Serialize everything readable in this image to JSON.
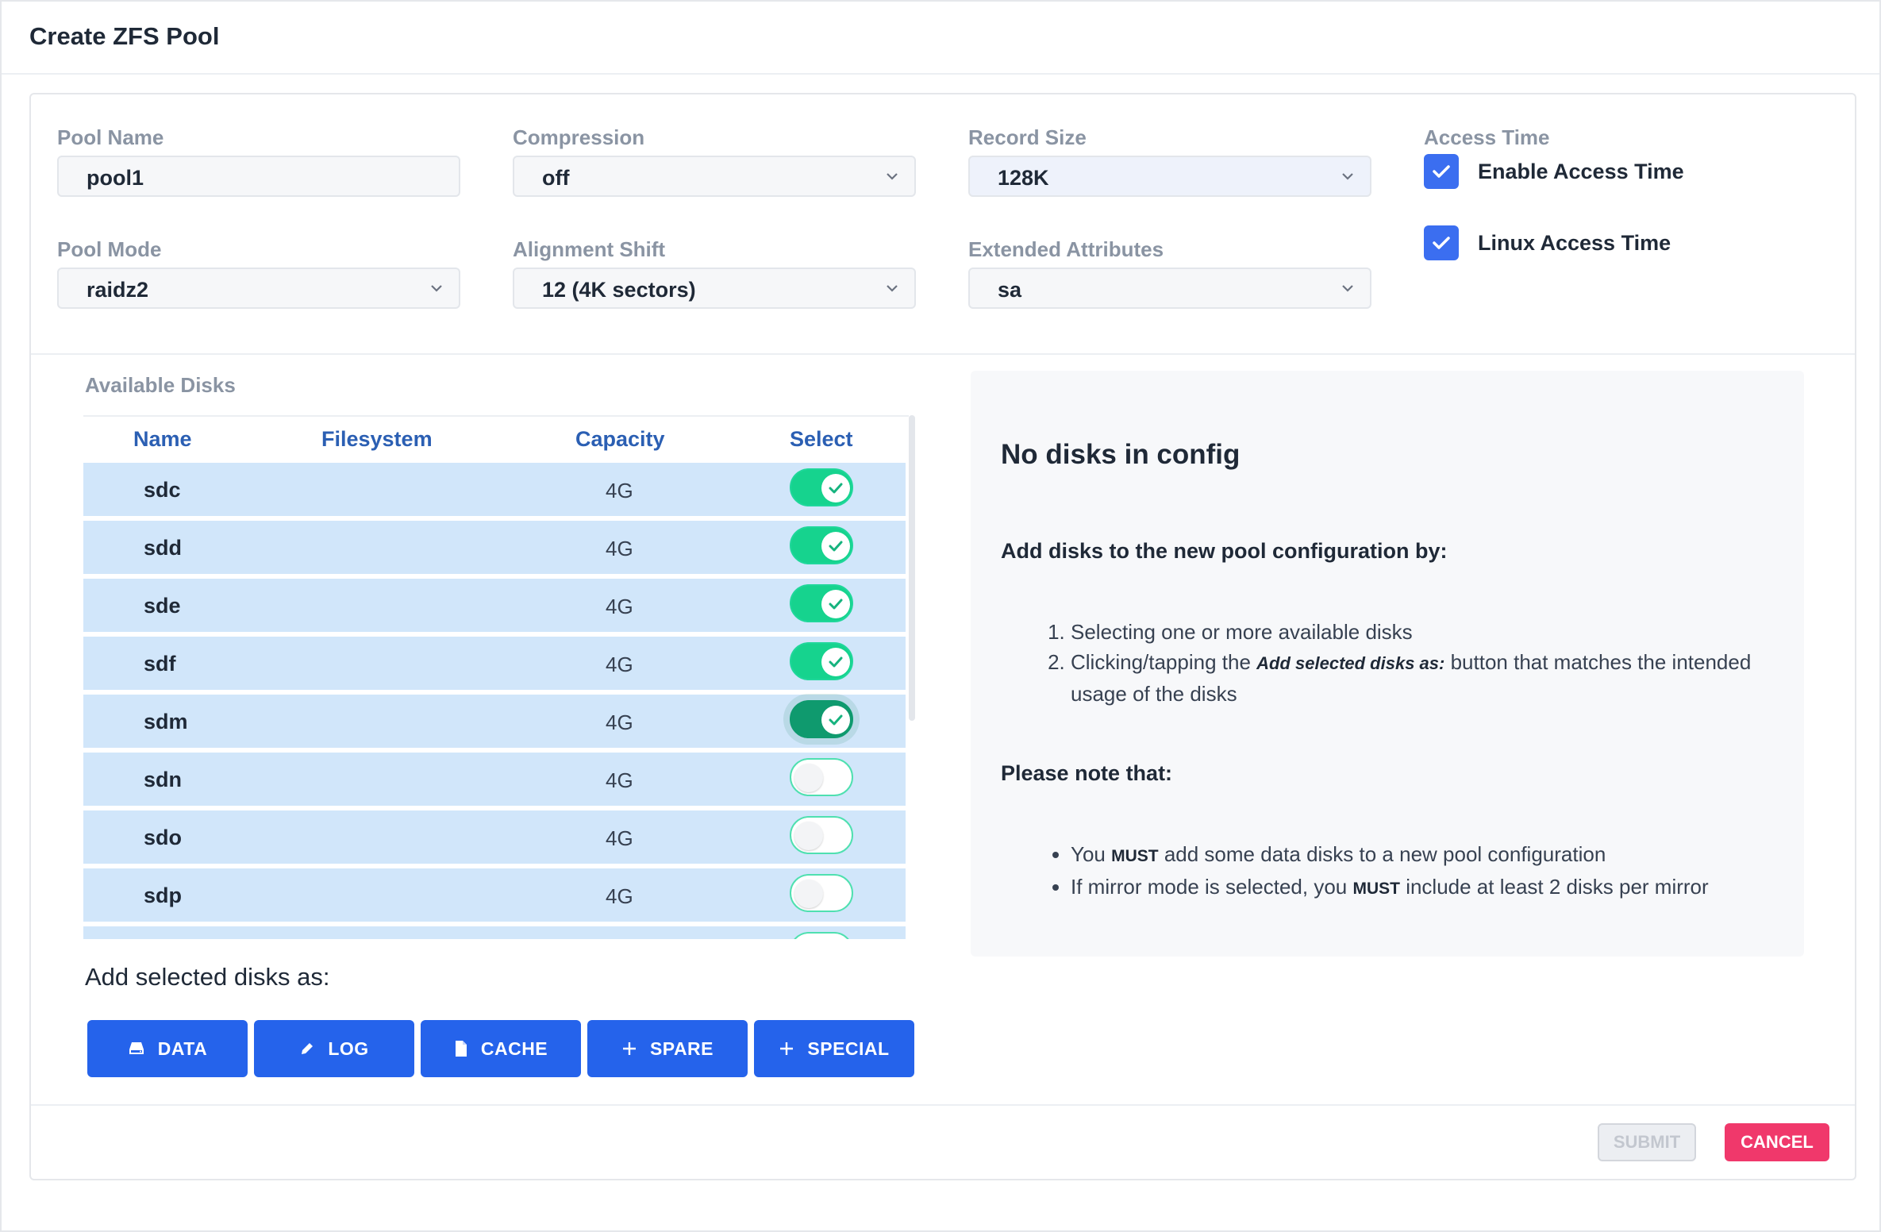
{
  "dialog": {
    "title": "Create ZFS Pool"
  },
  "form": {
    "pool_name": {
      "label": "Pool Name",
      "value": "pool1"
    },
    "compression": {
      "label": "Compression",
      "value": "off"
    },
    "record_size": {
      "label": "Record Size",
      "value": "128K"
    },
    "access_time": {
      "label": "Access Time",
      "enable_label": "Enable Access Time",
      "enable_checked": true,
      "linux_label": "Linux Access Time",
      "linux_checked": true
    },
    "pool_mode": {
      "label": "Pool Mode",
      "value": "raidz2"
    },
    "alignment_shift": {
      "label": "Alignment Shift",
      "value": "12 (4K sectors)"
    },
    "extended_attributes": {
      "label": "Extended Attributes",
      "value": "sa"
    }
  },
  "disks": {
    "title": "Available Disks",
    "columns": [
      "Name",
      "Filesystem",
      "Capacity",
      "Select"
    ],
    "rows": [
      {
        "name": "sdc",
        "filesystem": "",
        "capacity": "4G",
        "selected": true
      },
      {
        "name": "sdd",
        "filesystem": "",
        "capacity": "4G",
        "selected": true
      },
      {
        "name": "sde",
        "filesystem": "",
        "capacity": "4G",
        "selected": true
      },
      {
        "name": "sdf",
        "filesystem": "",
        "capacity": "4G",
        "selected": true
      },
      {
        "name": "sdm",
        "filesystem": "",
        "capacity": "4G",
        "selected": true,
        "focused": true
      },
      {
        "name": "sdn",
        "filesystem": "",
        "capacity": "4G",
        "selected": false
      },
      {
        "name": "sdo",
        "filesystem": "",
        "capacity": "4G",
        "selected": false
      },
      {
        "name": "sdp",
        "filesystem": "",
        "capacity": "4G",
        "selected": false
      }
    ]
  },
  "add_as": {
    "label": "Add selected disks as:",
    "buttons": [
      {
        "label": "DATA",
        "icon": "hard-drive-icon"
      },
      {
        "label": "LOG",
        "icon": "pencil-icon"
      },
      {
        "label": "CACHE",
        "icon": "file-icon"
      },
      {
        "label": "SPARE",
        "icon": "plus-icon"
      },
      {
        "label": "SPECIAL",
        "icon": "plus-icon"
      }
    ]
  },
  "info": {
    "heading": "No disks in config",
    "sub": "Add disks to the new pool configuration by:",
    "step1": "Selecting one or more available disks",
    "step2_pre": "Clicking/tapping the ",
    "step2_em": "Add selected disks as:",
    "step2_post": " button that matches the intended usage of the disks",
    "note_heading": "Please note that:",
    "note1_pre": "You ",
    "note1_must": "MUST",
    "note1_post": " add some data disks to a new pool configuration",
    "note2_pre": "If mirror mode is selected, you ",
    "note2_must": "MUST",
    "note2_post": " include at least 2 disks per mirror"
  },
  "footer": {
    "submit": "SUBMIT",
    "cancel": "CANCEL"
  },
  "colors": {
    "primary": "#2563eb",
    "toggle_on": "#16d38e",
    "cancel": "#f0386b",
    "row_bg": "#d1e6fa"
  }
}
